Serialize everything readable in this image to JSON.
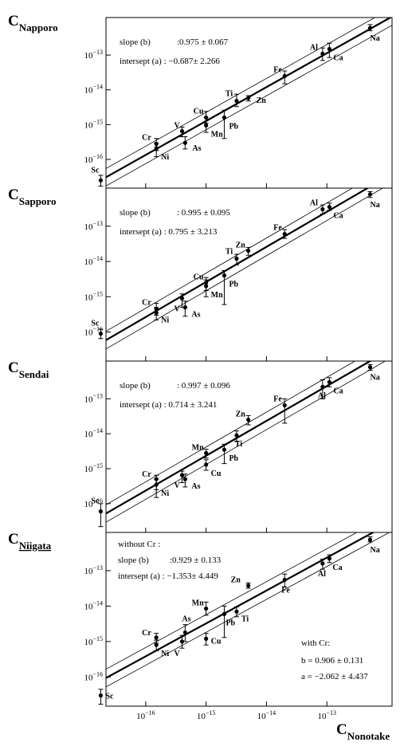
{
  "x_axis": {
    "label_main": "C",
    "label_sub": "Nonotake",
    "tick_values": [
      1e-16,
      1e-15,
      1e-14,
      1e-13
    ],
    "tick_labels": [
      {
        "base": "10",
        "exp": "−16"
      },
      {
        "base": "10",
        "exp": "−15"
      },
      {
        "base": "10",
        "exp": "−14"
      },
      {
        "base": "10",
        "exp": "−13"
      }
    ]
  },
  "y_tick_labels": [
    {
      "base": "10",
      "exp": "−13"
    },
    {
      "base": "10",
      "exp": "−14"
    },
    {
      "base": "10",
      "exp": "−15"
    },
    {
      "base": "10",
      "exp": "−16"
    }
  ],
  "chart_data": [
    {
      "type": "scatter",
      "scale": "log-log",
      "ylabel_main": "C",
      "ylabel_sub": "Napporo",
      "y_underline": false,
      "xlim": [
        2.2e-17,
        1.2e-12
      ],
      "ylim": [
        1.5e-17,
        1.2e-12
      ],
      "annotations": [
        "slope (b)",
        ":0.975  ± 0.067",
        "intersept (a) : −0.687± 2.266"
      ],
      "fit": {
        "slope": 0.975,
        "intercept": -0.687
      },
      "points": [
        {
          "label": "Sc",
          "x": 1.8e-17,
          "y": 2.5e-17,
          "lo": 1.7e-17,
          "hi": 3.5e-17
        },
        {
          "label": "Cr",
          "x": 1.5e-16,
          "y": 2.8e-16,
          "lo": 1.8e-16,
          "hi": 4e-16
        },
        {
          "label": "Ni",
          "x": 1.5e-16,
          "y": 2.1e-16,
          "lo": 1.2e-16,
          "hi": 3e-16
        },
        {
          "label": "V",
          "x": 4e-16,
          "y": 6.5e-16,
          "lo": 4.5e-16,
          "hi": 8.5e-16
        },
        {
          "label": "As",
          "x": 4.5e-16,
          "y": 3e-16,
          "lo": 2e-16,
          "hi": 4.5e-16
        },
        {
          "label": "Cu",
          "x": 1e-15,
          "y": 1.6e-15,
          "lo": 1.1e-15,
          "hi": 2.4e-15
        },
        {
          "label": "Mn",
          "x": 1e-15,
          "y": 9.5e-16,
          "lo": 6e-16,
          "hi": 1.6e-15
        },
        {
          "label": "Pb",
          "x": 2e-15,
          "y": 1.6e-15,
          "lo": 4e-16,
          "hi": 2.6e-15
        },
        {
          "label": "Ti",
          "x": 3.2e-15,
          "y": 4.8e-15,
          "lo": 3.3e-15,
          "hi": 7.5e-15
        },
        {
          "label": "Zn",
          "x": 5e-15,
          "y": 5.8e-15,
          "lo": 4.8e-15,
          "hi": 6.8e-15
        },
        {
          "label": "Fe",
          "x": 2e-14,
          "y": 2.5e-14,
          "lo": 1.5e-14,
          "hi": 3.5e-14
        },
        {
          "label": "Al",
          "x": 8.5e-14,
          "y": 1.1e-13,
          "lo": 7e-14,
          "hi": 1.6e-13
        },
        {
          "label": "Ca",
          "x": 1.1e-13,
          "y": 1.5e-13,
          "lo": 8.5e-14,
          "hi": 2.2e-13
        },
        {
          "label": "Na",
          "x": 5.2e-13,
          "y": 6e-13,
          "lo": 5e-13,
          "hi": 7.5e-13
        }
      ]
    },
    {
      "type": "scatter",
      "scale": "log-log",
      "ylabel_main": "C",
      "ylabel_sub": "Sapporo",
      "y_underline": false,
      "xlim": [
        2.2e-17,
        1.2e-12
      ],
      "ylim": [
        1.5e-17,
        1.2e-12
      ],
      "annotations": [
        "slope (b)",
        ": 0.995 ± 0.095",
        "intersept (a) : 0.795 ± 3.213"
      ],
      "fit": {
        "slope": 0.995,
        "intercept": 0.795
      },
      "points": [
        {
          "label": "Sc",
          "x": 1.8e-17,
          "y": 9e-17,
          "lo": 6.5e-17,
          "hi": 1.2e-16
        },
        {
          "label": "Cr",
          "x": 1.5e-16,
          "y": 4.5e-16,
          "lo": 3e-16,
          "hi": 6.5e-16
        },
        {
          "label": "Ni",
          "x": 1.5e-16,
          "y": 3.5e-16,
          "lo": 2.2e-16,
          "hi": 5e-16
        },
        {
          "label": "V",
          "x": 4e-16,
          "y": 9e-16,
          "lo": 5e-16,
          "hi": 1.2e-15
        },
        {
          "label": "As",
          "x": 4.5e-16,
          "y": 5e-16,
          "lo": 2.8e-16,
          "hi": 7.5e-16
        },
        {
          "label": "Cu",
          "x": 1e-15,
          "y": 2.5e-15,
          "lo": 1.5e-15,
          "hi": 3.5e-15
        },
        {
          "label": "Mn",
          "x": 1e-15,
          "y": 2e-15,
          "lo": 1e-15,
          "hi": 3e-15
        },
        {
          "label": "Pb",
          "x": 2e-15,
          "y": 4e-15,
          "lo": 6e-16,
          "hi": 5.5e-15
        },
        {
          "label": "Ti",
          "x": 3.2e-15,
          "y": 1.2e-14,
          "lo": 8e-15,
          "hi": 1.6e-14
        },
        {
          "label": "Zn",
          "x": 5e-15,
          "y": 2e-14,
          "lo": 1.5e-14,
          "hi": 2.5e-14
        },
        {
          "label": "Fe",
          "x": 2e-14,
          "y": 6e-14,
          "lo": 4.5e-14,
          "hi": 8e-14
        },
        {
          "label": "Al",
          "x": 8.5e-14,
          "y": 3e-13,
          "lo": 2.2e-13,
          "hi": 4e-13
        },
        {
          "label": "Ca",
          "x": 1.1e-13,
          "y": 3.5e-13,
          "lo": 2.8e-13,
          "hi": 4.5e-13
        },
        {
          "label": "Na",
          "x": 5.2e-13,
          "y": 8e-13,
          "lo": 6.5e-13,
          "hi": 9.5e-13
        }
      ]
    },
    {
      "type": "scatter",
      "scale": "log-log",
      "ylabel_main": "C",
      "ylabel_sub": "Sendai",
      "y_underline": false,
      "xlim": [
        2.2e-17,
        1.2e-12
      ],
      "ylim": [
        1.5e-17,
        1.2e-12
      ],
      "annotations": [
        "slope (b)",
        ": 0.997 ± 0.096",
        "intersept (a) : 0.714 ± 3.241"
      ],
      "fit": {
        "slope": 0.997,
        "intercept": 0.714
      },
      "points": [
        {
          "label": "Sc",
          "x": 1.8e-17,
          "y": 6e-17,
          "lo": 2.2e-17,
          "hi": 1e-16
        },
        {
          "label": "Cr",
          "x": 1.5e-16,
          "y": 5e-16,
          "lo": 2.5e-16,
          "hi": 6.5e-16
        },
        {
          "label": "Ni",
          "x": 1.5e-16,
          "y": 3.5e-16,
          "lo": 1.5e-16,
          "hi": 5e-16
        },
        {
          "label": "V",
          "x": 4e-16,
          "y": 6.5e-16,
          "lo": 4e-16,
          "hi": 8.5e-16
        },
        {
          "label": "As",
          "x": 4.5e-16,
          "y": 5e-16,
          "lo": 3e-16,
          "hi": 7e-16
        },
        {
          "label": "Mn",
          "x": 1e-15,
          "y": 2.8e-15,
          "lo": 2e-15,
          "hi": 3.6e-15
        },
        {
          "label": "Cu",
          "x": 1e-15,
          "y": 1.3e-15,
          "lo": 9e-16,
          "hi": 1.8e-15
        },
        {
          "label": "Pb",
          "x": 2e-15,
          "y": 3.5e-15,
          "lo": 1.4e-15,
          "hi": 5e-15
        },
        {
          "label": "Ti",
          "x": 3.2e-15,
          "y": 9e-15,
          "lo": 6e-15,
          "hi": 1.2e-14
        },
        {
          "label": "Zn",
          "x": 5e-15,
          "y": 2.5e-14,
          "lo": 1.8e-14,
          "hi": 3.3e-14
        },
        {
          "label": "Fe",
          "x": 2e-14,
          "y": 6.5e-14,
          "lo": 2e-14,
          "hi": 1e-13
        },
        {
          "label": "Al",
          "x": 8.5e-14,
          "y": 2.2e-13,
          "lo": 1e-13,
          "hi": 3.5e-13
        },
        {
          "label": "Ca",
          "x": 1.1e-13,
          "y": 3e-13,
          "lo": 2.2e-13,
          "hi": 4e-13
        },
        {
          "label": "Na",
          "x": 5.2e-13,
          "y": 8e-13,
          "lo": 6.5e-13,
          "hi": 9.5e-13
        }
      ]
    },
    {
      "type": "scatter",
      "scale": "log-log",
      "ylabel_main": "C",
      "ylabel_sub": "Niigata",
      "y_underline": true,
      "xlim": [
        2.2e-17,
        1.2e-12
      ],
      "ylim": [
        1.5e-17,
        1.2e-12
      ],
      "annotations": [
        "without Cr :",
        "slope (b)",
        ":0.929  ± 0.133",
        "intersept (a) : −1.353± 4.449"
      ],
      "annotations_2": [
        "with Cr:",
        "b = 0.906  ± 0.131",
        "a = −2.062 ± 4.437"
      ],
      "fit": {
        "slope": 0.929,
        "intercept": -1.353
      },
      "points": [
        {
          "label": "Sc",
          "x": 1.8e-17,
          "y": 3e-17,
          "lo": 1.7e-17,
          "hi": 4.5e-17
        },
        {
          "label": "Cr",
          "x": 1.5e-16,
          "y": 1.3e-15,
          "lo": 9e-16,
          "hi": 1.7e-15
        },
        {
          "label": "Ni",
          "x": 1.5e-16,
          "y": 8e-16,
          "lo": 5.5e-16,
          "hi": 1.1e-15
        },
        {
          "label": "As",
          "x": 4.5e-16,
          "y": 1.8e-15,
          "lo": 1e-15,
          "hi": 3e-15
        },
        {
          "label": "V",
          "x": 4e-16,
          "y": 1e-15,
          "lo": 6.5e-16,
          "hi": 1.5e-15
        },
        {
          "label": "Mn",
          "x": 1e-15,
          "y": 8.5e-15,
          "lo": 5.5e-15,
          "hi": 1.3e-14
        },
        {
          "label": "Cu",
          "x": 1e-15,
          "y": 1.2e-15,
          "lo": 8e-16,
          "hi": 1.7e-15
        },
        {
          "label": "Pb",
          "x": 2e-15,
          "y": 6e-15,
          "lo": 1.3e-15,
          "hi": 1e-14
        },
        {
          "label": "Ti",
          "x": 3.2e-15,
          "y": 7e-15,
          "lo": 5e-15,
          "hi": 9.5e-15
        },
        {
          "label": "Zn",
          "x": 5e-15,
          "y": 3.8e-14,
          "lo": 3.2e-14,
          "hi": 4.5e-14
        },
        {
          "label": "Fe",
          "x": 2e-14,
          "y": 5.5e-14,
          "lo": 3.5e-14,
          "hi": 8e-14
        },
        {
          "label": "Al",
          "x": 8.5e-14,
          "y": 1.6e-13,
          "lo": 1.1e-13,
          "hi": 2.1e-13
        },
        {
          "label": "Ca",
          "x": 1.1e-13,
          "y": 2.2e-13,
          "lo": 1.7e-13,
          "hi": 2.8e-13
        },
        {
          "label": "Na",
          "x": 5.2e-13,
          "y": 7.5e-13,
          "lo": 6.5e-13,
          "hi": 9e-13
        }
      ]
    }
  ]
}
